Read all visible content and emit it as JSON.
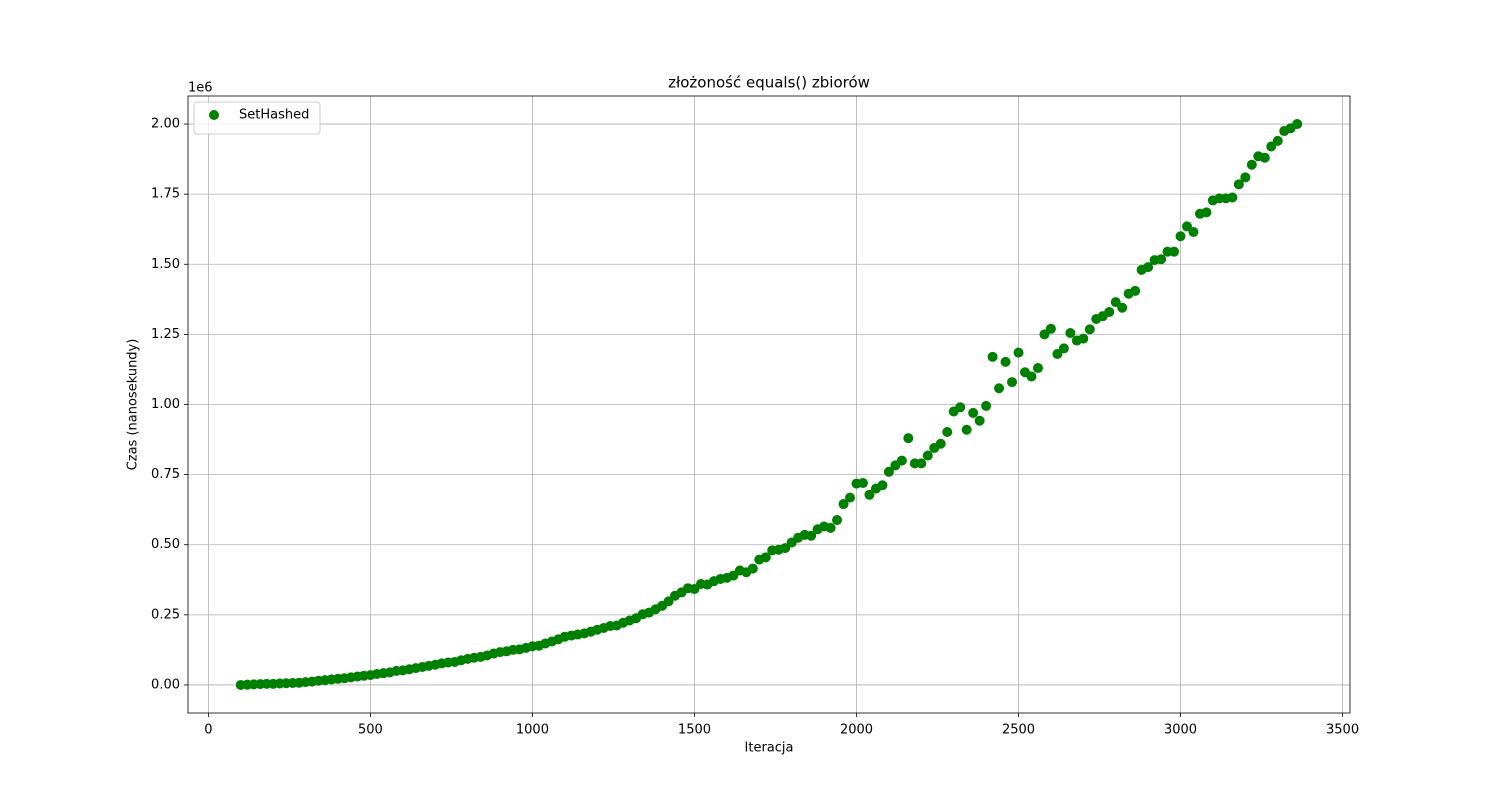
{
  "chart_data": {
    "type": "scatter",
    "title": "złożoność equals() zbiorów",
    "x_label": "Iteracja",
    "y_label": "Czas (nanosekundy)",
    "y_offset_label": "1e6",
    "grid": true,
    "legend": "upper left",
    "xlim": [
      -63,
      3523
    ],
    "ylim": [
      -0.1,
      2.1
    ],
    "xticks": [
      0,
      500,
      1000,
      1500,
      2000,
      2500,
      3000,
      3500
    ],
    "yticks": [
      {
        "value": 0,
        "label": "0.00"
      },
      0.25,
      {
        "value": 0.5,
        "label": "0.50"
      },
      0.75,
      {
        "value": 1,
        "label": "1.00"
      },
      1.25,
      {
        "value": 1.5,
        "label": "1.50"
      },
      1.75,
      {
        "value": 2,
        "label": "2.00"
      }
    ],
    "x": [
      100,
      120,
      140,
      160,
      180,
      200,
      220,
      240,
      260,
      280,
      300,
      320,
      340,
      360,
      380,
      400,
      420,
      440,
      460,
      480,
      500,
      520,
      540,
      560,
      580,
      600,
      620,
      640,
      660,
      680,
      700,
      720,
      740,
      760,
      780,
      800,
      820,
      840,
      860,
      880,
      900,
      920,
      940,
      960,
      980,
      1000,
      1020,
      1040,
      1060,
      1080,
      1100,
      1120,
      1140,
      1160,
      1180,
      1200,
      1220,
      1240,
      1260,
      1280,
      1300,
      1320,
      1340,
      1360,
      1380,
      1400,
      1420,
      1440,
      1460,
      1480,
      1500,
      1520,
      1540,
      1560,
      1580,
      1600,
      1620,
      1640,
      1660,
      1680,
      1700,
      1720,
      1740,
      1760,
      1780,
      1800,
      1820,
      1840,
      1860,
      1880,
      1900,
      1920,
      1940,
      1960,
      1980,
      2000,
      2020,
      2040,
      2060,
      2080,
      2100,
      2120,
      2140,
      2160,
      2180,
      2200,
      2220,
      2240,
      2260,
      2280,
      2300,
      2320,
      2340,
      2360,
      2380,
      2400,
      2420,
      2440,
      2460,
      2480,
      2500,
      2520,
      2540,
      2560,
      2580,
      2600,
      2620,
      2640,
      2660,
      2680,
      2700,
      2720,
      2740,
      2760,
      2780,
      2800,
      2820,
      2840,
      2860,
      2880,
      2900,
      2920,
      2940,
      2960,
      2980,
      3000,
      3020,
      3040,
      3060,
      3080,
      3100,
      3120,
      3140,
      3160,
      3180,
      3200,
      3220,
      3240,
      3260,
      3280,
      3300,
      3320,
      3340,
      3360
    ],
    "series": [
      {
        "name": "SetHashed",
        "color": "#008000",
        "values": [
          0.0,
          0.001,
          0.002,
          0.003,
          0.004,
          0.004,
          0.005,
          0.006,
          0.007,
          0.008,
          0.01,
          0.012,
          0.015,
          0.017,
          0.02,
          0.022,
          0.024,
          0.027,
          0.03,
          0.033,
          0.035,
          0.039,
          0.042,
          0.045,
          0.05,
          0.052,
          0.056,
          0.06,
          0.064,
          0.068,
          0.072,
          0.077,
          0.08,
          0.082,
          0.088,
          0.093,
          0.097,
          0.1,
          0.105,
          0.112,
          0.117,
          0.12,
          0.125,
          0.127,
          0.132,
          0.138,
          0.14,
          0.148,
          0.155,
          0.163,
          0.172,
          0.176,
          0.18,
          0.184,
          0.19,
          0.197,
          0.203,
          0.21,
          0.212,
          0.222,
          0.23,
          0.238,
          0.252,
          0.258,
          0.27,
          0.282,
          0.298,
          0.318,
          0.33,
          0.345,
          0.342,
          0.36,
          0.358,
          0.37,
          0.378,
          0.382,
          0.39,
          0.408,
          0.402,
          0.415,
          0.447,
          0.455,
          0.48,
          0.482,
          0.488,
          0.508,
          0.525,
          0.535,
          0.532,
          0.555,
          0.565,
          0.56,
          0.588,
          0.645,
          0.668,
          0.718,
          0.72,
          0.678,
          0.7,
          0.712,
          0.76,
          0.783,
          0.8,
          0.88,
          0.79,
          0.79,
          0.818,
          0.845,
          0.86,
          0.902,
          0.975,
          0.99,
          0.91,
          0.97,
          0.942,
          0.995,
          1.17,
          1.058,
          1.152,
          1.08,
          1.185,
          1.115,
          1.1,
          1.13,
          1.25,
          1.27,
          1.18,
          1.2,
          1.255,
          1.228,
          1.235,
          1.268,
          1.305,
          1.315,
          1.33,
          1.365,
          1.345,
          1.395,
          1.405,
          1.48,
          1.49,
          1.515,
          1.518,
          1.545,
          1.545,
          1.6,
          1.635,
          1.615,
          1.68,
          1.685,
          1.728,
          1.735,
          1.735,
          1.738,
          1.785,
          1.81,
          1.855,
          1.885,
          1.88,
          1.92,
          1.94,
          1.975,
          1.985,
          2.0
        ]
      }
    ]
  }
}
